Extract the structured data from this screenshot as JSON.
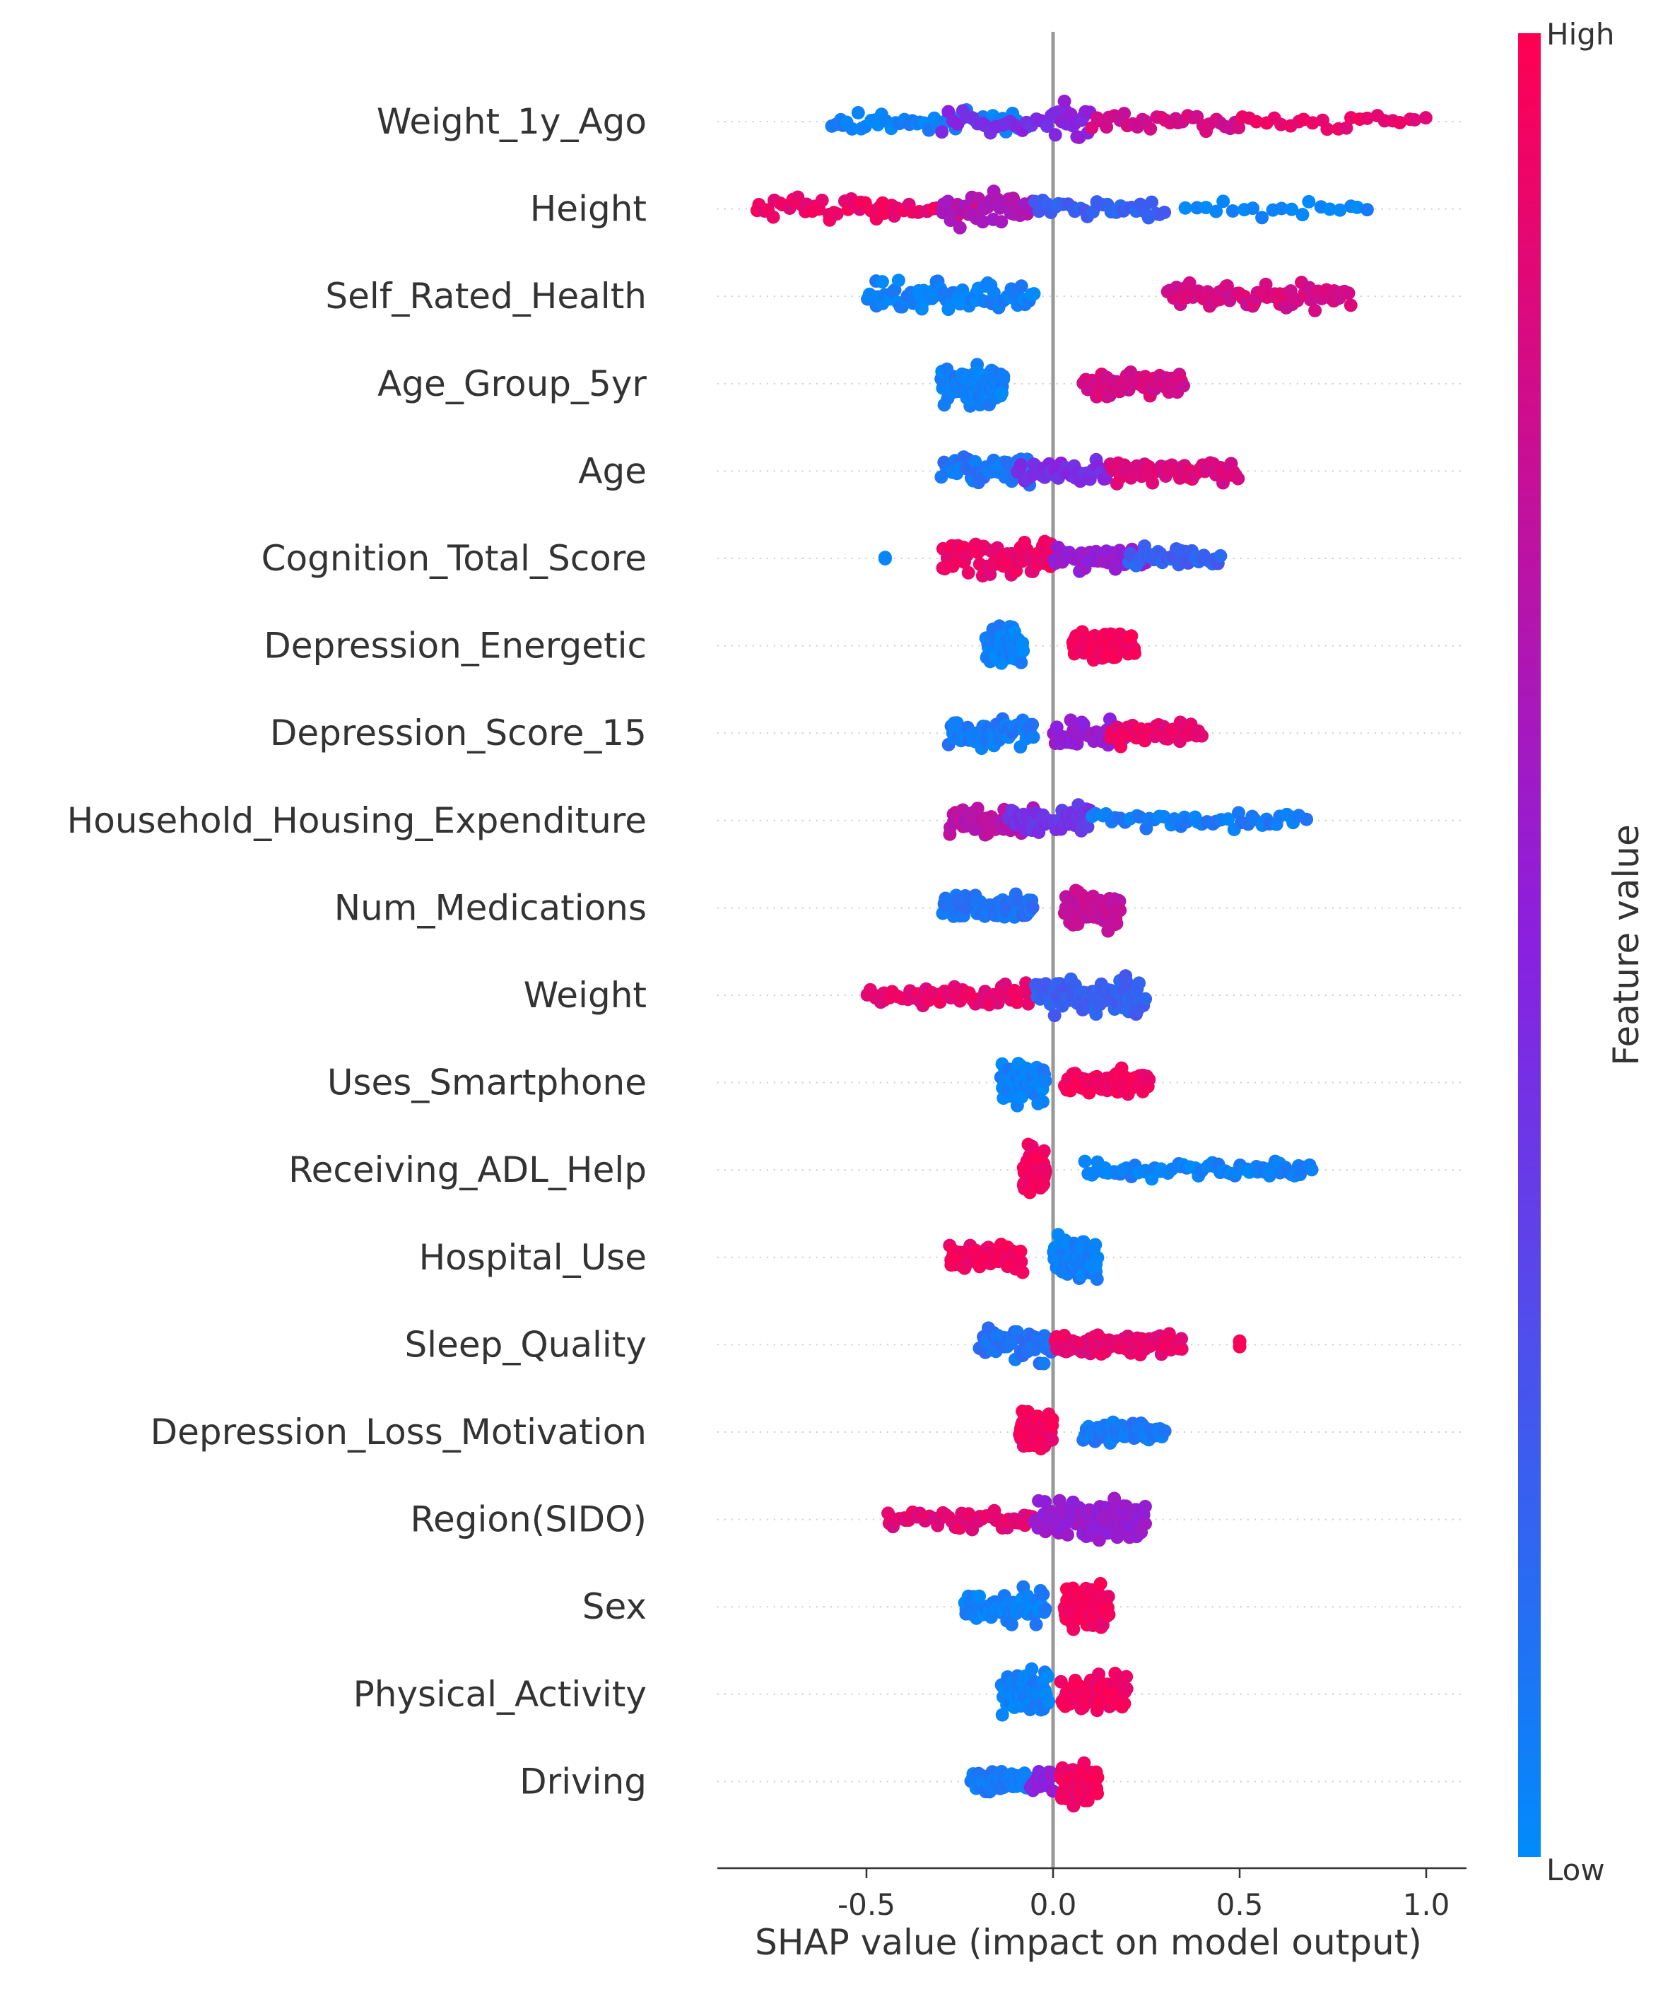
{
  "chart_data": {
    "type": "scatter",
    "title": "",
    "xlabel": "SHAP value (impact on model output)",
    "ylabel": "",
    "xlim": [
      -0.9,
      1.1
    ],
    "xticks": [
      -0.5,
      0.0,
      0.5,
      1.0
    ],
    "xtick_labels": [
      "-0.5",
      "0.0",
      "0.5",
      "1.0"
    ],
    "grid": false,
    "legend": {
      "type": "colorbar",
      "placement": "right",
      "title": "Feature value",
      "high_label": "High",
      "low_label": "Low"
    },
    "colors": {
      "high": "#ff0052",
      "mid": "#8a20e0",
      "low": "#008bfb",
      "zero_line": "#999999",
      "axis": "#333333"
    },
    "features": [
      {
        "name": "Weight_1y_Ago",
        "points": [
          {
            "range": [
              -0.6,
              -0.05
            ],
            "color": 0.05,
            "density": 1.0,
            "share": 0.32
          },
          {
            "range": [
              -0.3,
              0.05
            ],
            "color": 0.45,
            "density": 1.0,
            "share": 0.18
          },
          {
            "range": [
              0.0,
              0.1
            ],
            "color": 0.5,
            "density": 2.5,
            "share": 0.12
          },
          {
            "range": [
              0.1,
              0.5
            ],
            "color": 0.8,
            "density": 1.0,
            "share": 0.22
          },
          {
            "range": [
              0.5,
              1.0
            ],
            "color": 0.92,
            "density": 0.6,
            "share": 0.16
          }
        ]
      },
      {
        "name": "Height",
        "points": [
          {
            "range": [
              -0.8,
              -0.2
            ],
            "color": 0.92,
            "density": 1.0,
            "share": 0.38
          },
          {
            "range": [
              -0.3,
              -0.05
            ],
            "color": 0.65,
            "density": 1.6,
            "share": 0.27
          },
          {
            "range": [
              -0.05,
              0.3
            ],
            "color": 0.2,
            "density": 1.0,
            "share": 0.22
          },
          {
            "range": [
              0.35,
              0.85
            ],
            "color": 0.03,
            "density": 0.5,
            "share": 0.13
          }
        ]
      },
      {
        "name": "Self_Rated_Health",
        "points": [
          {
            "range": [
              -0.5,
              -0.05
            ],
            "color": 0.05,
            "density": 1.6,
            "share": 0.5
          },
          {
            "range": [
              0.3,
              0.8
            ],
            "color": 0.82,
            "density": 1.1,
            "share": 0.5
          }
        ]
      },
      {
        "name": "Age_Group_5yr",
        "points": [
          {
            "range": [
              -0.3,
              -0.13
            ],
            "color": 0.05,
            "density": 2.4,
            "share": 0.55
          },
          {
            "range": [
              0.08,
              0.35
            ],
            "color": 0.82,
            "density": 1.2,
            "share": 0.45
          }
        ]
      },
      {
        "name": "Age",
        "points": [
          {
            "range": [
              -0.3,
              -0.05
            ],
            "color": 0.1,
            "density": 1.4,
            "share": 0.35
          },
          {
            "range": [
              -0.1,
              0.15
            ],
            "color": 0.45,
            "density": 1.0,
            "share": 0.25
          },
          {
            "range": [
              0.15,
              0.5
            ],
            "color": 0.85,
            "density": 0.9,
            "share": 0.4
          }
        ]
      },
      {
        "name": "Cognition_Total_Score",
        "points": [
          {
            "range": [
              -0.45,
              -0.45
            ],
            "color": 0.05,
            "density": 0.2,
            "share": 0.01
          },
          {
            "range": [
              -0.3,
              0.0
            ],
            "color": 0.92,
            "density": 1.6,
            "share": 0.45
          },
          {
            "range": [
              0.0,
              0.25
            ],
            "color": 0.55,
            "density": 1.0,
            "share": 0.3
          },
          {
            "range": [
              0.2,
              0.45
            ],
            "color": 0.2,
            "density": 0.9,
            "share": 0.24
          }
        ]
      },
      {
        "name": "Depression_Energetic",
        "points": [
          {
            "range": [
              -0.18,
              -0.08
            ],
            "color": 0.05,
            "density": 2.4,
            "share": 0.5
          },
          {
            "range": [
              0.05,
              0.22
            ],
            "color": 0.95,
            "density": 1.8,
            "share": 0.5
          }
        ]
      },
      {
        "name": "Depression_Score_15",
        "points": [
          {
            "range": [
              -0.28,
              -0.05
            ],
            "color": 0.08,
            "density": 1.5,
            "share": 0.42
          },
          {
            "range": [
              0.0,
              0.2
            ],
            "color": 0.55,
            "density": 1.3,
            "share": 0.3
          },
          {
            "range": [
              0.15,
              0.4
            ],
            "color": 0.92,
            "density": 0.9,
            "share": 0.28
          }
        ]
      },
      {
        "name": "Household_Housing_Expenditure",
        "points": [
          {
            "range": [
              -0.28,
              -0.05
            ],
            "color": 0.7,
            "density": 1.2,
            "share": 0.35
          },
          {
            "range": [
              -0.12,
              0.1
            ],
            "color": 0.4,
            "density": 1.7,
            "share": 0.35
          },
          {
            "range": [
              0.1,
              0.68
            ],
            "color": 0.08,
            "density": 0.5,
            "share": 0.3
          }
        ]
      },
      {
        "name": "Num_Medications",
        "points": [
          {
            "range": [
              -0.3,
              -0.05
            ],
            "color": 0.12,
            "density": 1.2,
            "share": 0.45
          },
          {
            "range": [
              0.03,
              0.18
            ],
            "color": 0.75,
            "density": 1.9,
            "share": 0.55
          }
        ]
      },
      {
        "name": "Weight",
        "points": [
          {
            "range": [
              -0.5,
              -0.05
            ],
            "color": 0.9,
            "density": 1.0,
            "share": 0.38
          },
          {
            "range": [
              -0.05,
              0.25
            ],
            "color": 0.2,
            "density": 1.9,
            "share": 0.62
          }
        ]
      },
      {
        "name": "Uses_Smartphone",
        "points": [
          {
            "range": [
              -0.14,
              -0.02
            ],
            "color": 0.05,
            "density": 2.4,
            "share": 0.5
          },
          {
            "range": [
              0.03,
              0.26
            ],
            "color": 0.95,
            "density": 1.5,
            "share": 0.5
          }
        ]
      },
      {
        "name": "Receiving_ADL_Help",
        "points": [
          {
            "range": [
              -0.08,
              -0.02
            ],
            "color": 0.95,
            "density": 3.2,
            "share": 0.55
          },
          {
            "range": [
              0.08,
              0.7
            ],
            "color": 0.05,
            "density": 0.6,
            "share": 0.45
          }
        ]
      },
      {
        "name": "Hospital_Use",
        "points": [
          {
            "range": [
              -0.28,
              -0.08
            ],
            "color": 0.95,
            "density": 1.6,
            "share": 0.45
          },
          {
            "range": [
              0.0,
              0.12
            ],
            "color": 0.05,
            "density": 2.2,
            "share": 0.55
          }
        ]
      },
      {
        "name": "Sleep_Quality",
        "points": [
          {
            "range": [
              -0.2,
              0.02
            ],
            "color": 0.12,
            "density": 1.6,
            "share": 0.4
          },
          {
            "range": [
              0.0,
              0.35
            ],
            "color": 0.9,
            "density": 1.0,
            "share": 0.58
          },
          {
            "range": [
              0.5,
              0.5
            ],
            "color": 0.95,
            "density": 0.2,
            "share": 0.02
          }
        ]
      },
      {
        "name": "Depression_Loss_Motivation",
        "points": [
          {
            "range": [
              -0.09,
              0.0
            ],
            "color": 0.95,
            "density": 2.8,
            "share": 0.55
          },
          {
            "range": [
              0.08,
              0.3
            ],
            "color": 0.08,
            "density": 1.0,
            "share": 0.45
          }
        ]
      },
      {
        "name": "Region(SIDO)",
        "points": [
          {
            "range": [
              -0.45,
              -0.05
            ],
            "color": 0.88,
            "density": 0.8,
            "share": 0.3
          },
          {
            "range": [
              -0.05,
              0.25
            ],
            "color": 0.55,
            "density": 2.2,
            "share": 0.7
          }
        ]
      },
      {
        "name": "Sex",
        "points": [
          {
            "range": [
              -0.24,
              -0.02
            ],
            "color": 0.05,
            "density": 1.6,
            "share": 0.45
          },
          {
            "range": [
              0.03,
              0.15
            ],
            "color": 0.95,
            "density": 2.4,
            "share": 0.55
          }
        ]
      },
      {
        "name": "Physical_Activity",
        "points": [
          {
            "range": [
              -0.14,
              -0.01
            ],
            "color": 0.05,
            "density": 2.4,
            "share": 0.5
          },
          {
            "range": [
              0.02,
              0.2
            ],
            "color": 0.95,
            "density": 2.0,
            "share": 0.5
          }
        ]
      },
      {
        "name": "Driving",
        "points": [
          {
            "range": [
              -0.22,
              -0.06
            ],
            "color": 0.08,
            "density": 1.3,
            "share": 0.4
          },
          {
            "range": [
              -0.06,
              0.0
            ],
            "color": 0.5,
            "density": 1.5,
            "share": 0.15
          },
          {
            "range": [
              0.02,
              0.12
            ],
            "color": 0.95,
            "density": 2.4,
            "share": 0.45
          }
        ]
      }
    ]
  }
}
